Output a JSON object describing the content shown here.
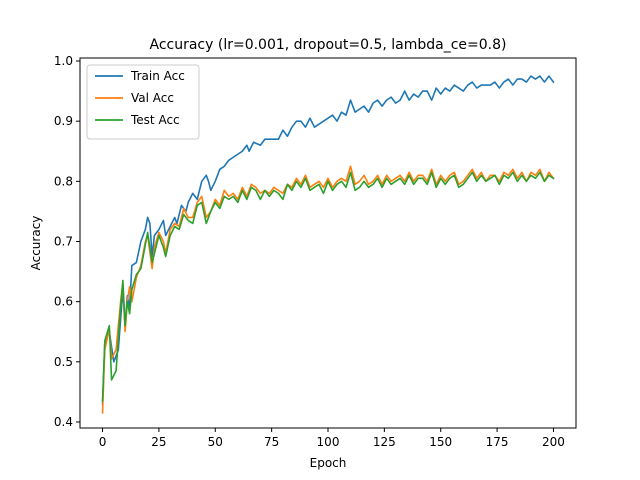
{
  "chart_data": {
    "type": "line",
    "title": "Accuracy (lr=0.001, dropout=0.5, lambda_ce=0.8)",
    "xlabel": "Epoch",
    "ylabel": "Accuracy",
    "xlim": [
      -10,
      210
    ],
    "ylim": [
      0.39,
      1.005
    ],
    "xticks": [
      0,
      25,
      50,
      75,
      100,
      125,
      150,
      175,
      200
    ],
    "yticks": [
      0.4,
      0.5,
      0.6,
      0.7,
      0.8,
      0.9,
      1.0
    ],
    "grid": false,
    "legend": "top-left",
    "series": [
      {
        "name": "Train Acc",
        "color": "#1f77b4",
        "points": [
          [
            0,
            0.43
          ],
          [
            1,
            0.53
          ],
          [
            3,
            0.55
          ],
          [
            5,
            0.5
          ],
          [
            7,
            0.52
          ],
          [
            8,
            0.57
          ],
          [
            9,
            0.62
          ],
          [
            10,
            0.56
          ],
          [
            11,
            0.61
          ],
          [
            12,
            0.59
          ],
          [
            13,
            0.66
          ],
          [
            15,
            0.665
          ],
          [
            17,
            0.7
          ],
          [
            19,
            0.72
          ],
          [
            20,
            0.74
          ],
          [
            21,
            0.73
          ],
          [
            22,
            0.675
          ],
          [
            23,
            0.71
          ],
          [
            25,
            0.72
          ],
          [
            27,
            0.735
          ],
          [
            28,
            0.71
          ],
          [
            30,
            0.725
          ],
          [
            32,
            0.74
          ],
          [
            33,
            0.73
          ],
          [
            35,
            0.76
          ],
          [
            37,
            0.75
          ],
          [
            38,
            0.765
          ],
          [
            40,
            0.78
          ],
          [
            42,
            0.77
          ],
          [
            44,
            0.8
          ],
          [
            46,
            0.81
          ],
          [
            47,
            0.8
          ],
          [
            48,
            0.785
          ],
          [
            50,
            0.8
          ],
          [
            52,
            0.82
          ],
          [
            54,
            0.825
          ],
          [
            56,
            0.835
          ],
          [
            58,
            0.84
          ],
          [
            60,
            0.845
          ],
          [
            62,
            0.85
          ],
          [
            64,
            0.86
          ],
          [
            65,
            0.85
          ],
          [
            67,
            0.865
          ],
          [
            70,
            0.86
          ],
          [
            72,
            0.87
          ],
          [
            75,
            0.87
          ],
          [
            78,
            0.87
          ],
          [
            80,
            0.885
          ],
          [
            82,
            0.875
          ],
          [
            84,
            0.89
          ],
          [
            86,
            0.9
          ],
          [
            88,
            0.9
          ],
          [
            90,
            0.89
          ],
          [
            92,
            0.905
          ],
          [
            94,
            0.89
          ],
          [
            96,
            0.895
          ],
          [
            98,
            0.9
          ],
          [
            100,
            0.905
          ],
          [
            102,
            0.91
          ],
          [
            104,
            0.9
          ],
          [
            106,
            0.915
          ],
          [
            108,
            0.91
          ],
          [
            110,
            0.935
          ],
          [
            112,
            0.915
          ],
          [
            114,
            0.92
          ],
          [
            116,
            0.925
          ],
          [
            118,
            0.915
          ],
          [
            120,
            0.93
          ],
          [
            122,
            0.935
          ],
          [
            124,
            0.925
          ],
          [
            126,
            0.935
          ],
          [
            128,
            0.94
          ],
          [
            130,
            0.93
          ],
          [
            132,
            0.935
          ],
          [
            134,
            0.95
          ],
          [
            136,
            0.935
          ],
          [
            138,
            0.945
          ],
          [
            140,
            0.94
          ],
          [
            142,
            0.95
          ],
          [
            144,
            0.95
          ],
          [
            146,
            0.935
          ],
          [
            148,
            0.955
          ],
          [
            150,
            0.945
          ],
          [
            152,
            0.955
          ],
          [
            154,
            0.95
          ],
          [
            156,
            0.96
          ],
          [
            158,
            0.955
          ],
          [
            160,
            0.95
          ],
          [
            162,
            0.96
          ],
          [
            164,
            0.965
          ],
          [
            166,
            0.955
          ],
          [
            168,
            0.96
          ],
          [
            170,
            0.96
          ],
          [
            172,
            0.96
          ],
          [
            174,
            0.965
          ],
          [
            176,
            0.955
          ],
          [
            178,
            0.965
          ],
          [
            180,
            0.97
          ],
          [
            182,
            0.96
          ],
          [
            184,
            0.97
          ],
          [
            186,
            0.97
          ],
          [
            188,
            0.965
          ],
          [
            190,
            0.975
          ],
          [
            192,
            0.97
          ],
          [
            194,
            0.975
          ],
          [
            196,
            0.965
          ],
          [
            198,
            0.975
          ],
          [
            200,
            0.965
          ]
        ]
      },
      {
        "name": "Val Acc",
        "color": "#ff7f0e",
        "points": [
          [
            0,
            0.415
          ],
          [
            1,
            0.52
          ],
          [
            3,
            0.555
          ],
          [
            4,
            0.505
          ],
          [
            6,
            0.52
          ],
          [
            8,
            0.6
          ],
          [
            9,
            0.63
          ],
          [
            10,
            0.55
          ],
          [
            11,
            0.6
          ],
          [
            12,
            0.625
          ],
          [
            13,
            0.6
          ],
          [
            15,
            0.64
          ],
          [
            17,
            0.66
          ],
          [
            19,
            0.7
          ],
          [
            20,
            0.71
          ],
          [
            22,
            0.655
          ],
          [
            23,
            0.69
          ],
          [
            25,
            0.715
          ],
          [
            27,
            0.7
          ],
          [
            28,
            0.68
          ],
          [
            30,
            0.72
          ],
          [
            32,
            0.73
          ],
          [
            34,
            0.725
          ],
          [
            36,
            0.755
          ],
          [
            38,
            0.74
          ],
          [
            40,
            0.74
          ],
          [
            42,
            0.765
          ],
          [
            44,
            0.775
          ],
          [
            46,
            0.74
          ],
          [
            48,
            0.75
          ],
          [
            50,
            0.77
          ],
          [
            52,
            0.76
          ],
          [
            54,
            0.785
          ],
          [
            56,
            0.775
          ],
          [
            58,
            0.78
          ],
          [
            60,
            0.77
          ],
          [
            62,
            0.79
          ],
          [
            64,
            0.775
          ],
          [
            66,
            0.795
          ],
          [
            68,
            0.79
          ],
          [
            70,
            0.78
          ],
          [
            72,
            0.785
          ],
          [
            74,
            0.78
          ],
          [
            76,
            0.79
          ],
          [
            78,
            0.785
          ],
          [
            80,
            0.78
          ],
          [
            82,
            0.795
          ],
          [
            84,
            0.79
          ],
          [
            86,
            0.805
          ],
          [
            88,
            0.795
          ],
          [
            90,
            0.81
          ],
          [
            92,
            0.79
          ],
          [
            94,
            0.795
          ],
          [
            96,
            0.8
          ],
          [
            98,
            0.79
          ],
          [
            100,
            0.805
          ],
          [
            102,
            0.79
          ],
          [
            104,
            0.8
          ],
          [
            106,
            0.805
          ],
          [
            108,
            0.8
          ],
          [
            110,
            0.825
          ],
          [
            112,
            0.795
          ],
          [
            114,
            0.8
          ],
          [
            116,
            0.81
          ],
          [
            118,
            0.795
          ],
          [
            120,
            0.8
          ],
          [
            122,
            0.81
          ],
          [
            124,
            0.795
          ],
          [
            126,
            0.81
          ],
          [
            128,
            0.8
          ],
          [
            130,
            0.805
          ],
          [
            132,
            0.81
          ],
          [
            134,
            0.8
          ],
          [
            136,
            0.815
          ],
          [
            138,
            0.8
          ],
          [
            140,
            0.81
          ],
          [
            142,
            0.81
          ],
          [
            144,
            0.8
          ],
          [
            146,
            0.82
          ],
          [
            148,
            0.795
          ],
          [
            150,
            0.81
          ],
          [
            152,
            0.8
          ],
          [
            154,
            0.81
          ],
          [
            156,
            0.815
          ],
          [
            158,
            0.795
          ],
          [
            160,
            0.8
          ],
          [
            162,
            0.81
          ],
          [
            164,
            0.82
          ],
          [
            166,
            0.805
          ],
          [
            168,
            0.815
          ],
          [
            170,
            0.8
          ],
          [
            172,
            0.81
          ],
          [
            174,
            0.81
          ],
          [
            176,
            0.8
          ],
          [
            178,
            0.815
          ],
          [
            180,
            0.81
          ],
          [
            182,
            0.82
          ],
          [
            184,
            0.805
          ],
          [
            186,
            0.815
          ],
          [
            188,
            0.8
          ],
          [
            190,
            0.815
          ],
          [
            192,
            0.81
          ],
          [
            194,
            0.82
          ],
          [
            196,
            0.8
          ],
          [
            198,
            0.815
          ],
          [
            200,
            0.805
          ]
        ]
      },
      {
        "name": "Test Acc",
        "color": "#2ca02c",
        "points": [
          [
            0,
            0.435
          ],
          [
            1,
            0.535
          ],
          [
            3,
            0.56
          ],
          [
            4,
            0.47
          ],
          [
            6,
            0.485
          ],
          [
            8,
            0.59
          ],
          [
            9,
            0.635
          ],
          [
            10,
            0.56
          ],
          [
            11,
            0.6
          ],
          [
            12,
            0.58
          ],
          [
            13,
            0.62
          ],
          [
            15,
            0.645
          ],
          [
            17,
            0.655
          ],
          [
            19,
            0.695
          ],
          [
            20,
            0.715
          ],
          [
            22,
            0.665
          ],
          [
            23,
            0.68
          ],
          [
            25,
            0.71
          ],
          [
            27,
            0.69
          ],
          [
            28,
            0.675
          ],
          [
            30,
            0.71
          ],
          [
            32,
            0.725
          ],
          [
            34,
            0.72
          ],
          [
            36,
            0.745
          ],
          [
            38,
            0.735
          ],
          [
            40,
            0.73
          ],
          [
            42,
            0.76
          ],
          [
            44,
            0.765
          ],
          [
            46,
            0.73
          ],
          [
            48,
            0.75
          ],
          [
            50,
            0.765
          ],
          [
            52,
            0.755
          ],
          [
            54,
            0.775
          ],
          [
            56,
            0.77
          ],
          [
            58,
            0.775
          ],
          [
            60,
            0.765
          ],
          [
            62,
            0.785
          ],
          [
            64,
            0.77
          ],
          [
            66,
            0.79
          ],
          [
            68,
            0.785
          ],
          [
            70,
            0.77
          ],
          [
            72,
            0.785
          ],
          [
            74,
            0.775
          ],
          [
            76,
            0.785
          ],
          [
            78,
            0.78
          ],
          [
            80,
            0.77
          ],
          [
            82,
            0.795
          ],
          [
            84,
            0.785
          ],
          [
            86,
            0.8
          ],
          [
            88,
            0.79
          ],
          [
            90,
            0.805
          ],
          [
            92,
            0.785
          ],
          [
            94,
            0.79
          ],
          [
            96,
            0.795
          ],
          [
            98,
            0.78
          ],
          [
            100,
            0.8
          ],
          [
            102,
            0.785
          ],
          [
            104,
            0.795
          ],
          [
            106,
            0.8
          ],
          [
            108,
            0.79
          ],
          [
            110,
            0.815
          ],
          [
            112,
            0.785
          ],
          [
            114,
            0.79
          ],
          [
            116,
            0.8
          ],
          [
            118,
            0.79
          ],
          [
            120,
            0.795
          ],
          [
            122,
            0.805
          ],
          [
            124,
            0.79
          ],
          [
            126,
            0.805
          ],
          [
            128,
            0.795
          ],
          [
            130,
            0.8
          ],
          [
            132,
            0.805
          ],
          [
            134,
            0.795
          ],
          [
            136,
            0.81
          ],
          [
            138,
            0.795
          ],
          [
            140,
            0.805
          ],
          [
            142,
            0.805
          ],
          [
            144,
            0.795
          ],
          [
            146,
            0.815
          ],
          [
            148,
            0.79
          ],
          [
            150,
            0.805
          ],
          [
            152,
            0.795
          ],
          [
            154,
            0.805
          ],
          [
            156,
            0.81
          ],
          [
            158,
            0.79
          ],
          [
            160,
            0.795
          ],
          [
            162,
            0.805
          ],
          [
            164,
            0.815
          ],
          [
            166,
            0.8
          ],
          [
            168,
            0.81
          ],
          [
            170,
            0.8
          ],
          [
            172,
            0.805
          ],
          [
            174,
            0.81
          ],
          [
            176,
            0.795
          ],
          [
            178,
            0.81
          ],
          [
            180,
            0.805
          ],
          [
            182,
            0.815
          ],
          [
            184,
            0.8
          ],
          [
            186,
            0.81
          ],
          [
            188,
            0.8
          ],
          [
            190,
            0.81
          ],
          [
            192,
            0.805
          ],
          [
            194,
            0.815
          ],
          [
            196,
            0.8
          ],
          [
            198,
            0.81
          ],
          [
            200,
            0.805
          ]
        ]
      }
    ]
  }
}
